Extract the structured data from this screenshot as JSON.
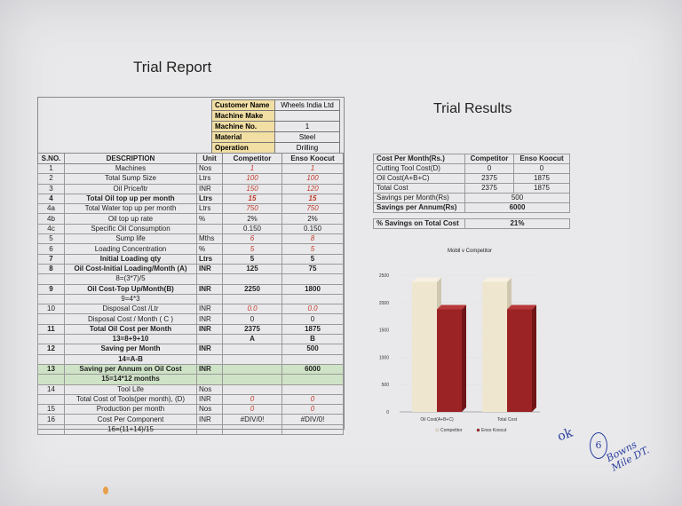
{
  "report_title": "Trial Report",
  "results_title": "Trial Results",
  "customer": [
    {
      "label": "Customer Name",
      "value": "Wheels India Ltd"
    },
    {
      "label": "Machine Make",
      "value": ""
    },
    {
      "label": "Machine No.",
      "value": "1"
    },
    {
      "label": "Material",
      "value": "Steel"
    },
    {
      "label": "Operation",
      "value": "Drilling"
    }
  ],
  "table": {
    "headers": [
      "S.NO.",
      "DESCRIPTION",
      "Unit",
      "Competitor",
      "Enso Koocut"
    ],
    "rows": [
      {
        "sno": "1",
        "desc": "Machines",
        "unit": "Nos",
        "comp": "1",
        "enso": "1",
        "red": true
      },
      {
        "sno": "2",
        "desc": "Total Sump Size",
        "unit": "Ltrs",
        "comp": "100",
        "enso": "100",
        "red": true
      },
      {
        "sno": "3",
        "desc": "Oil Price/ltr",
        "unit": "INR",
        "comp": "150",
        "enso": "120",
        "red": true
      },
      {
        "sno": "4",
        "desc": "Total Oil top up per month",
        "unit": "Ltrs",
        "comp": "15",
        "enso": "15",
        "red": true,
        "bold": true
      },
      {
        "sno": "4a",
        "desc": "Total Water top up per month",
        "unit": "Ltrs",
        "comp": "750",
        "enso": "750",
        "red": true
      },
      {
        "sno": "4b",
        "desc": "Oil top up rate",
        "unit": "%",
        "comp": "2%",
        "enso": "2%"
      },
      {
        "sno": "4c",
        "desc": "Specific Oil Consumption",
        "unit": "",
        "comp": "0.150",
        "enso": "0.150"
      },
      {
        "sno": "5",
        "desc": "Sump life",
        "unit": "Mths",
        "comp": "6",
        "enso": "8",
        "red": true
      },
      {
        "sno": "6",
        "desc": "Loading Concentration",
        "unit": "%",
        "comp": "5",
        "enso": "5",
        "red": true
      },
      {
        "sno": "7",
        "desc": "Initial Loading qty",
        "unit": "Ltrs",
        "comp": "5",
        "enso": "5",
        "bold": true
      },
      {
        "sno": "8",
        "desc": "Oil Cost-Initial Loading/Month (A)",
        "unit": "INR",
        "comp": "125",
        "enso": "75",
        "bold": true
      },
      {
        "sno": "",
        "desc": "8=(3*7)/5",
        "unit": "",
        "comp": "",
        "enso": ""
      },
      {
        "sno": "9",
        "desc": "Oil Cost-Top Up/Month(B)",
        "unit": "INR",
        "comp": "2250",
        "enso": "1800",
        "bold": true
      },
      {
        "sno": "",
        "desc": "9=4*3",
        "unit": "",
        "comp": "",
        "enso": ""
      },
      {
        "sno": "10",
        "desc": "Disposal Cost /Ltr",
        "unit": "INR",
        "comp": "0.0",
        "enso": "0.0",
        "red": true
      },
      {
        "sno": "",
        "desc": "Disposal Cost / Month ( C )",
        "unit": "INR",
        "comp": "0",
        "enso": "0"
      },
      {
        "sno": "11",
        "desc": "Total Oil Cost per Month",
        "unit": "INR",
        "comp": "2375",
        "enso": "1875",
        "bold": true
      },
      {
        "sno": "",
        "desc": "13=8+9+10",
        "unit": "",
        "comp": "A",
        "enso": "B",
        "bold": true
      },
      {
        "sno": "12",
        "desc": "Saving per Month",
        "unit": "INR",
        "comp": "",
        "enso": "500",
        "bold": true
      },
      {
        "sno": "",
        "desc": "14=A-B",
        "unit": "",
        "comp": "",
        "enso": "",
        "bold": true
      },
      {
        "sno": "13",
        "desc": "Saving per Annum on Oil Cost",
        "unit": "INR",
        "comp": "",
        "enso": "6000",
        "bold": true,
        "green": true
      },
      {
        "sno": "",
        "desc": "15=14*12 months",
        "unit": "",
        "comp": "",
        "enso": "",
        "bold": true,
        "green": true
      },
      {
        "sno": "14",
        "desc": "Tool Life",
        "unit": "Nos",
        "comp": "",
        "enso": ""
      },
      {
        "sno": "",
        "desc": "Total Cost of Tools(per month), (D)",
        "unit": "INR",
        "comp": "0",
        "enso": "0",
        "red": true
      },
      {
        "sno": "15",
        "desc": "Production per month",
        "unit": "Nos",
        "comp": "0",
        "enso": "0",
        "red": true
      },
      {
        "sno": "16",
        "desc": "Cost Per Component",
        "unit": "INR",
        "comp": "#DIV/0!",
        "enso": "#DIV/0!"
      },
      {
        "sno": "",
        "desc": "16=(11+14)/15",
        "unit": "",
        "comp": "",
        "enso": ""
      }
    ]
  },
  "results": {
    "headers": [
      "Cost Per Month(Rs.)",
      "Competitor",
      "Enso Koocut"
    ],
    "rows": [
      {
        "label": "Cutting Tool Cost(D)",
        "comp": "0",
        "enso": "0"
      },
      {
        "label": "Oil Cost(A+B+C)",
        "comp": "2375",
        "enso": "1875"
      },
      {
        "label": "Total Cost",
        "comp": "2375",
        "enso": "1875"
      }
    ],
    "savings_month_label": "Savings per Month(Rs)",
    "savings_month": "500",
    "savings_annum_label": "Savings per Annum(Rs)",
    "savings_annum": "6000",
    "pct_label": "% Savings on Total Cost",
    "pct": "21%"
  },
  "chart_data": {
    "type": "bar",
    "title": "Mobil v Competitor",
    "categories": [
      "Oil Cost(A+B+C)",
      "Total Cost"
    ],
    "series": [
      {
        "name": "Competitor",
        "values": [
          2375,
          2375
        ],
        "color": "#efe6cf"
      },
      {
        "name": "Enso Koocut",
        "values": [
          1875,
          1875
        ],
        "color": "#9b2326"
      }
    ],
    "ylim": [
      0,
      2500
    ],
    "yticks": [
      "0",
      "500",
      "1000",
      "1500",
      "2000",
      "2500"
    ],
    "legend": "bottom"
  },
  "annotations": {
    "ok": "ok",
    "circle_num": "6",
    "line1": "Bowns",
    "line2": "Mile DT."
  }
}
